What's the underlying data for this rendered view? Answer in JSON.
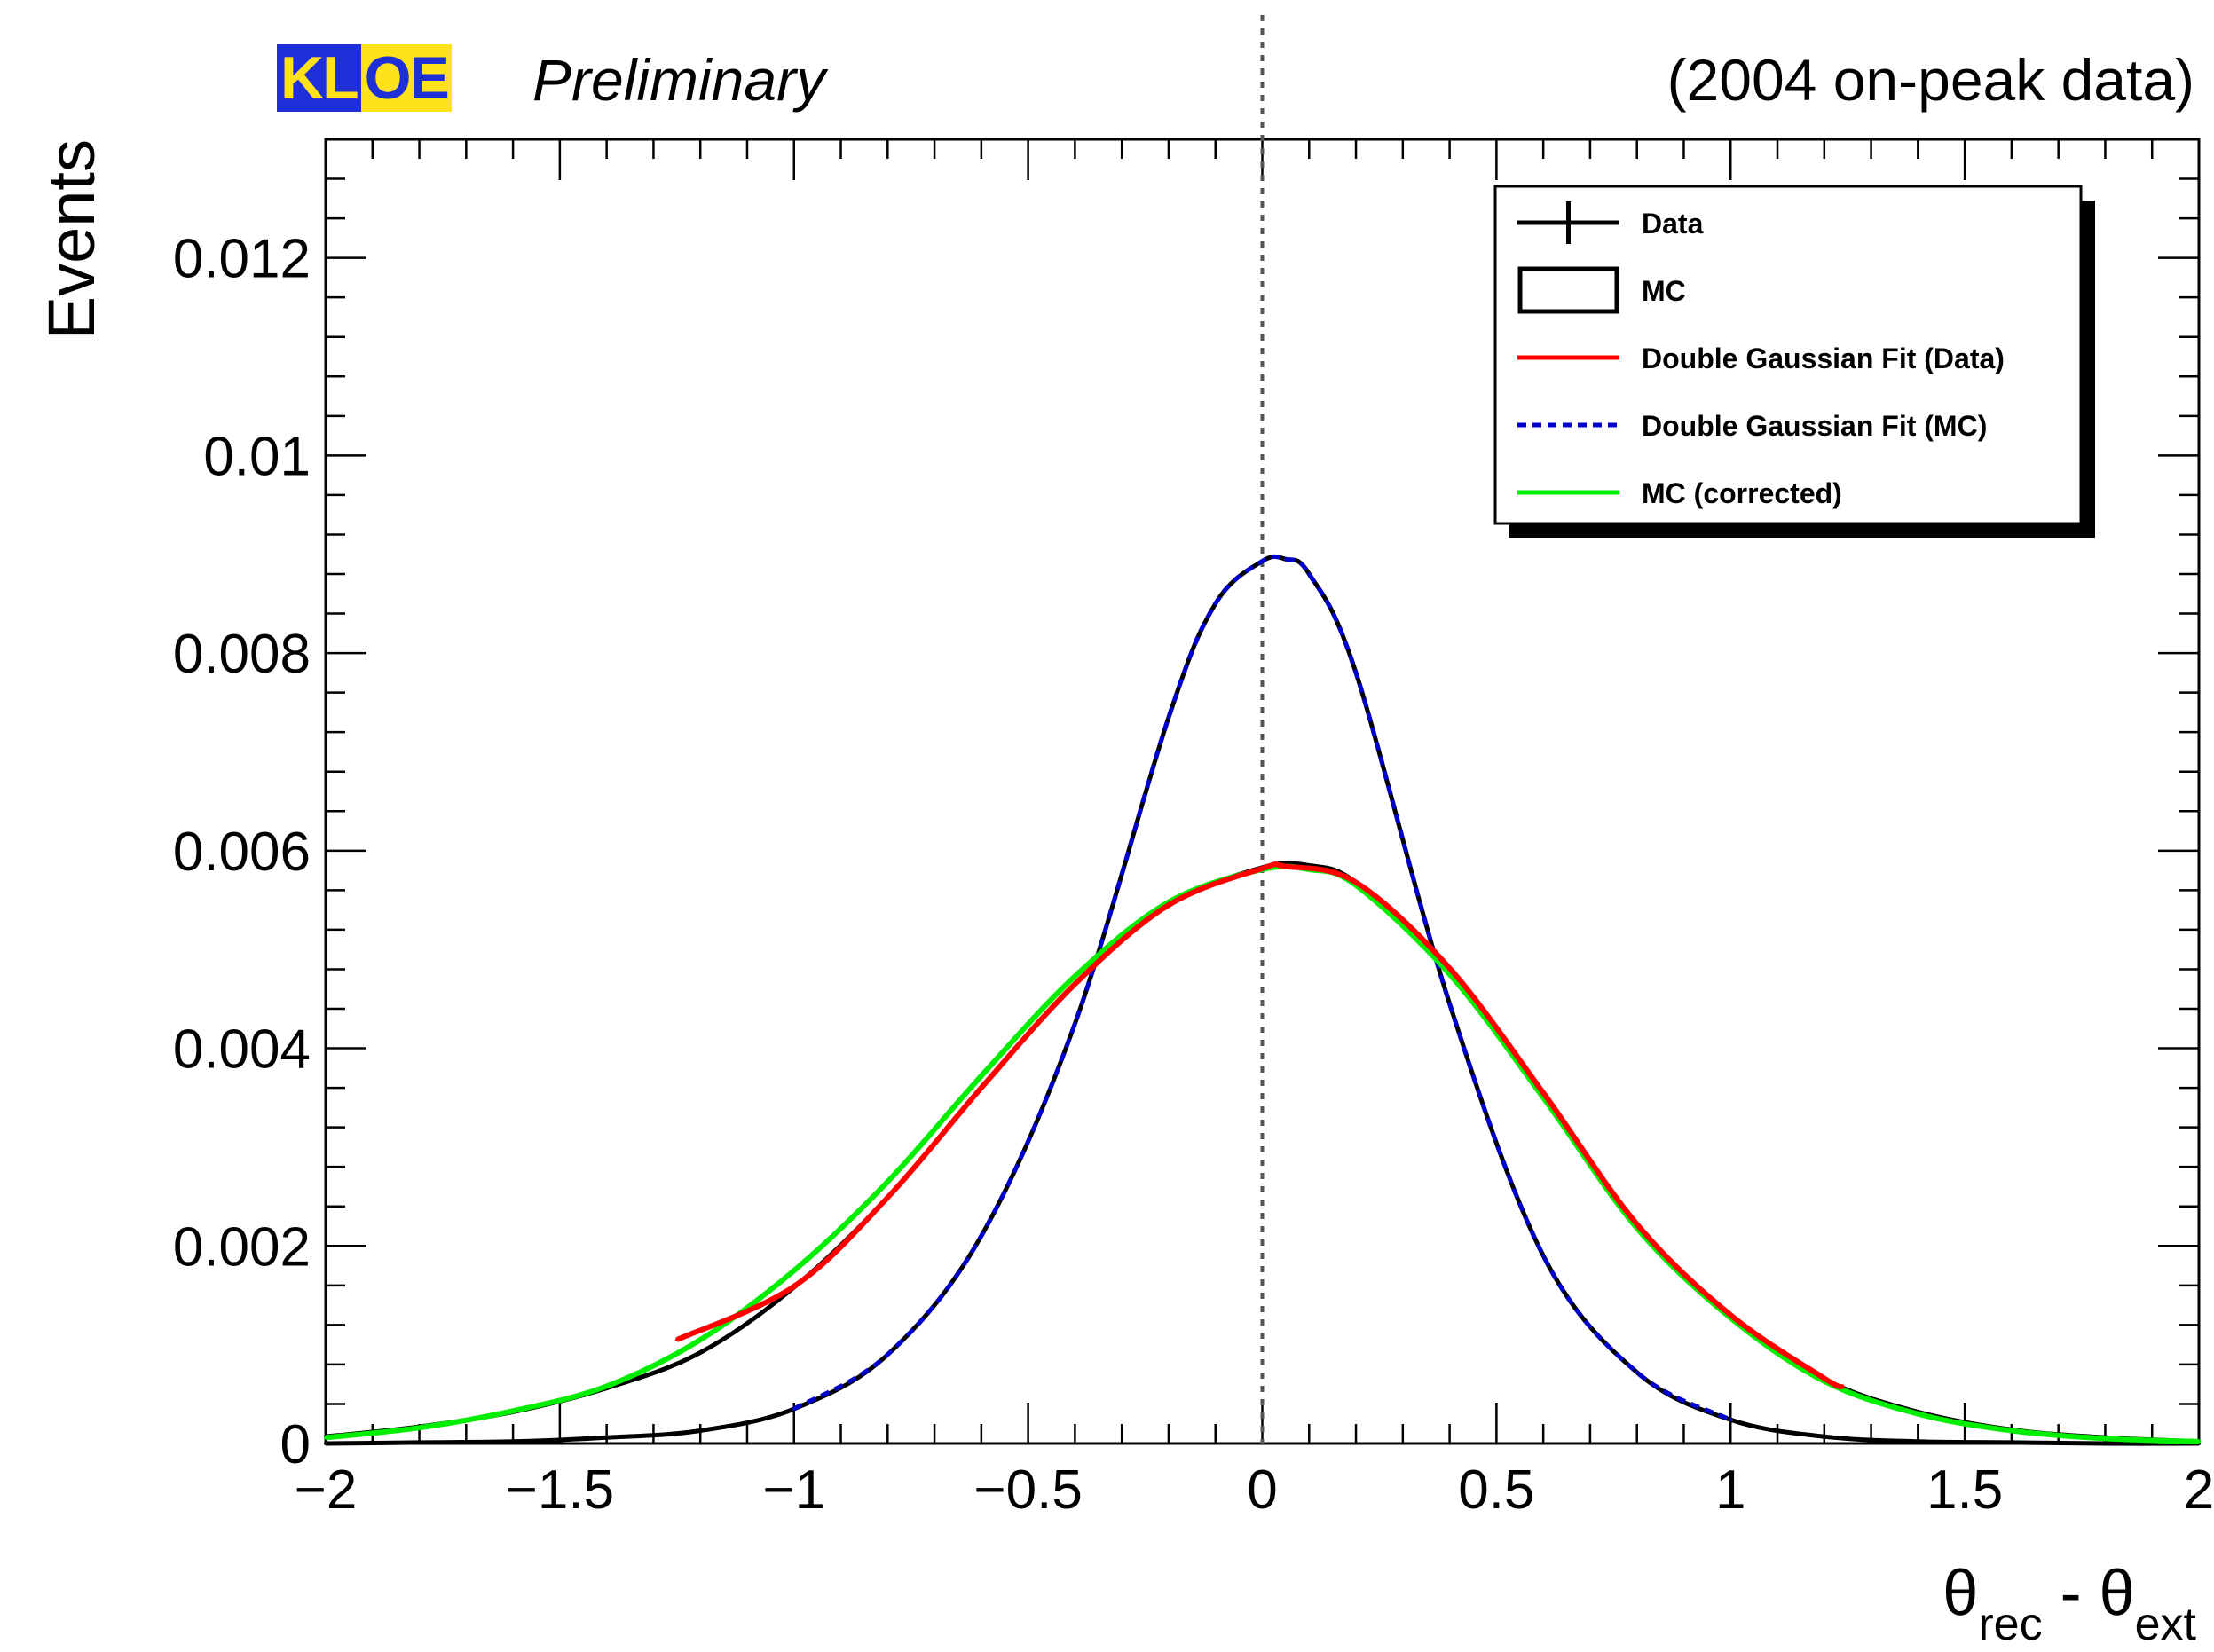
{
  "header": {
    "badge_part1": "KL",
    "badge_part2": "OE",
    "preliminary": "Preliminary",
    "sample": "(2004 on-peak data)"
  },
  "chart_data": {
    "type": "line",
    "xlabel": {
      "base1": "θ",
      "sub1": "rec",
      "mid": " - ",
      "base2": "θ",
      "sub2": "ext"
    },
    "ylabel": "Events",
    "xlim": [
      -2,
      2
    ],
    "ylim": [
      0,
      0.0132
    ],
    "xticks": [
      -2,
      -1.5,
      -1,
      -0.5,
      0,
      0.5,
      1,
      1.5,
      2
    ],
    "xtick_labels": [
      "−2",
      "−1.5",
      "−1",
      "−0.5",
      "0",
      "0.5",
      "1",
      "1.5",
      "2"
    ],
    "yticks": [
      0,
      0.002,
      0.004,
      0.006,
      0.008,
      0.01,
      0.012
    ],
    "ytick_labels": [
      "0",
      "0.002",
      "0.004",
      "0.006",
      "0.008",
      "0.01",
      "0.012"
    ],
    "reference_line": {
      "x": 0,
      "style": "dotted",
      "color": "#555555"
    },
    "legend_position": "top-right",
    "legend": [
      {
        "label": "Data",
        "symbol": "marker-errorbar",
        "color": "#000000"
      },
      {
        "label": "MC",
        "symbol": "box",
        "color": "#000000"
      },
      {
        "label": "Double Gaussian Fit (Data)",
        "symbol": "line",
        "color": "#ff0000"
      },
      {
        "label": "Double Gaussian Fit (MC)",
        "symbol": "dashed",
        "color": "#0000cc"
      },
      {
        "label": "MC (corrected)",
        "symbol": "line",
        "color": "#00ee00"
      }
    ],
    "series": [
      {
        "name": "Data",
        "color": "#000000",
        "x": [
          -2.0,
          -1.8,
          -1.6,
          -1.4,
          -1.2,
          -1.0,
          -0.8,
          -0.6,
          -0.4,
          -0.2,
          0.0,
          0.1,
          0.2,
          0.4,
          0.6,
          0.8,
          1.0,
          1.2,
          1.4,
          1.6,
          1.8,
          2.0
        ],
        "values": [
          7e-05,
          0.00017,
          0.00032,
          0.00056,
          0.00092,
          0.00158,
          0.00249,
          0.0036,
          0.00465,
          0.00545,
          0.00583,
          0.00585,
          0.00568,
          0.00481,
          0.00355,
          0.00222,
          0.0013,
          0.00065,
          0.00032,
          0.00014,
          6e-05,
          2e-05
        ]
      },
      {
        "name": "MC",
        "color": "#000000",
        "x": [
          -2.0,
          -1.8,
          -1.6,
          -1.4,
          -1.2,
          -1.0,
          -0.8,
          -0.6,
          -0.4,
          -0.2,
          -0.1,
          0.0,
          0.05,
          0.1,
          0.2,
          0.4,
          0.6,
          0.8,
          1.0,
          1.2,
          1.4,
          1.6,
          1.8,
          2.0
        ],
        "values": [
          0.0,
          1e-05,
          2e-05,
          6e-05,
          0.00013,
          0.00035,
          0.0009,
          0.0021,
          0.00425,
          0.00735,
          0.0085,
          0.00893,
          0.00895,
          0.0088,
          0.0078,
          0.00445,
          0.0019,
          0.00072,
          0.00024,
          7e-05,
          2e-05,
          1e-05,
          0.0,
          0.0
        ]
      },
      {
        "name": "Double Gaussian Fit (Data)",
        "color": "#ff0000",
        "x": [
          -1.25,
          -1.0,
          -0.8,
          -0.6,
          -0.4,
          -0.2,
          0.0,
          0.05,
          0.2,
          0.4,
          0.6,
          0.8,
          1.0,
          1.2,
          1.24
        ],
        "values": [
          0.00105,
          0.00159,
          0.00249,
          0.0036,
          0.00465,
          0.00545,
          0.00582,
          0.00584,
          0.00568,
          0.00481,
          0.00355,
          0.00222,
          0.0013,
          0.00066,
          0.00057
        ]
      },
      {
        "name": "Double Gaussian Fit (MC)",
        "color": "#0000cc",
        "x": [
          -1.0,
          -0.8,
          -0.6,
          -0.4,
          -0.2,
          -0.1,
          0.0,
          0.05,
          0.1,
          0.2,
          0.4,
          0.6,
          0.8,
          1.0
        ],
        "values": [
          0.00035,
          0.0009,
          0.0021,
          0.00425,
          0.00735,
          0.0085,
          0.00893,
          0.00895,
          0.0088,
          0.0078,
          0.00445,
          0.0019,
          0.00072,
          0.00024
        ]
      },
      {
        "name": "MC (corrected)",
        "color": "#00ee00",
        "x": [
          -2.0,
          -1.8,
          -1.6,
          -1.4,
          -1.2,
          -1.0,
          -0.8,
          -0.6,
          -0.4,
          -0.2,
          0.0,
          0.1,
          0.2,
          0.4,
          0.6,
          0.8,
          1.0,
          1.2,
          1.4,
          1.6,
          1.8,
          2.0
        ],
        "values": [
          6e-05,
          0.00016,
          0.00033,
          0.00058,
          0.00105,
          0.00175,
          0.00265,
          0.00372,
          0.00473,
          0.00548,
          0.00581,
          0.00581,
          0.00565,
          0.00475,
          0.0035,
          0.00218,
          0.00127,
          0.00063,
          0.0003,
          0.00013,
          5e-05,
          2e-05
        ]
      }
    ]
  }
}
